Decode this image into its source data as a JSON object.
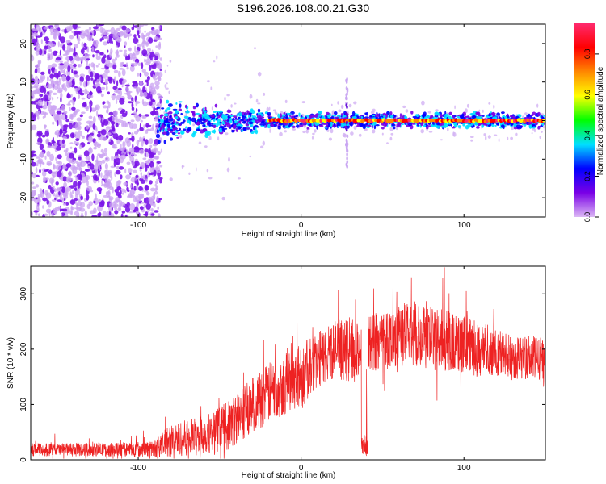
{
  "figure": {
    "title": "S196.2026.108.00.21.G30"
  },
  "chart_data": [
    {
      "type": "heatmap",
      "title": "",
      "xlabel": "Height of straight line (km)",
      "ylabel": "Frequency (Hz)",
      "xlim": [
        -166,
        150
      ],
      "ylim": [
        -25,
        25
      ],
      "x_ticks": [
        -100,
        0,
        100
      ],
      "x_tick_labels": [
        "-100",
        "0",
        "100"
      ],
      "y_ticks": [
        -20,
        -10,
        0,
        10,
        20
      ],
      "y_tick_labels": [
        "-20",
        "-10",
        "0",
        "10",
        "20"
      ],
      "colorbar": {
        "label": "Normalized spectral amplitude",
        "range": [
          0,
          0.95
        ],
        "ticks": [
          0,
          0.2,
          0.4,
          0.6,
          0.8
        ],
        "tick_labels": [
          "0.0",
          "0.2",
          "0.4",
          "0.6",
          "0.8"
        ],
        "colors": [
          "#dcb8f5",
          "#7a00e6",
          "#0000ff",
          "#00e0ff",
          "#00ff00",
          "#ffff00",
          "#ff8800",
          "#ff0000",
          "#ff2a6e"
        ]
      },
      "regions": [
        {
          "x_range": [
            -166,
            -88
          ],
          "freq_spread": 25,
          "amplitude": 0.05,
          "description": "broadband noise"
        },
        {
          "x_range": [
            -88,
            -20
          ],
          "freq_spread": 6,
          "amplitude": 0.2
        },
        {
          "x_range": [
            -20,
            150
          ],
          "freq_spread": 1.5,
          "amplitude": 0.85
        },
        {
          "x_range": [
            27,
            29
          ],
          "freq_spread": 12,
          "amplitude": 0.15,
          "description": "vertical stripe"
        }
      ]
    },
    {
      "type": "line",
      "title": "",
      "xlabel": "Height of straight line (km)",
      "ylabel": "SNR (10 * v/v)",
      "xlim": [
        -166,
        150
      ],
      "ylim": [
        0,
        350
      ],
      "x_ticks": [
        -100,
        0,
        100
      ],
      "x_tick_labels": [
        "-100",
        "0",
        "100"
      ],
      "y_ticks": [
        0,
        100,
        200,
        300
      ],
      "y_tick_labels": [
        "0",
        "100",
        "200",
        "300"
      ],
      "color": "#ee2222",
      "envelope": {
        "x": [
          -166,
          -120,
          -90,
          -80,
          -60,
          -45,
          -30,
          -20,
          -5,
          0,
          10,
          20,
          35,
          40,
          50,
          60,
          70,
          80,
          90,
          100,
          110,
          120,
          130,
          140,
          150
        ],
        "mean": [
          18,
          18,
          20,
          35,
          45,
          60,
          100,
          120,
          150,
          150,
          180,
          200,
          195,
          210,
          220,
          225,
          230,
          220,
          215,
          205,
          200,
          195,
          185,
          185,
          180
        ],
        "noise": [
          12,
          12,
          15,
          30,
          35,
          45,
          50,
          55,
          60,
          60,
          50,
          55,
          55,
          55,
          55,
          55,
          60,
          60,
          55,
          55,
          50,
          45,
          40,
          40,
          40
        ]
      },
      "dropouts": [
        {
          "x_range": [
            37,
            41
          ],
          "value": 25
        }
      ]
    }
  ]
}
